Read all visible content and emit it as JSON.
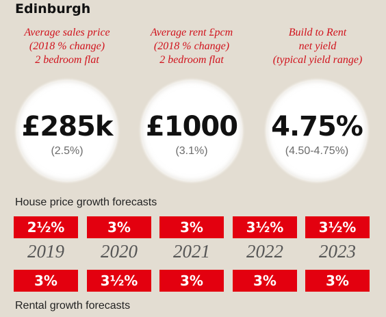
{
  "city": "Edinburgh",
  "stats": [
    {
      "heading": [
        "Average sales price",
        "(2018 % change)",
        "2 bedroom flat"
      ],
      "value": "£285k",
      "sub": "(2.5%)"
    },
    {
      "heading": [
        "Average rent £pcm",
        "(2018 % change)",
        "2 bedroom flat"
      ],
      "value": "£1000",
      "sub": "(3.1%)"
    },
    {
      "heading": [
        "Build to Rent",
        "net yield",
        "(typical yield range)"
      ],
      "value": "4.75%",
      "sub": "(4.50-4.75%)"
    }
  ],
  "house_price_label": "House price growth forecasts",
  "rental_label": "Rental growth forecasts",
  "years": [
    "2019",
    "2020",
    "2021",
    "2022",
    "2023"
  ],
  "house_price_forecasts": [
    "2½%",
    "3%",
    "3%",
    "3½%",
    "3½%"
  ],
  "rental_forecasts": [
    "3%",
    "3½%",
    "3%",
    "3%",
    "3%"
  ],
  "colors": {
    "accent": "#e3000f",
    "background": "#e3ddd2"
  }
}
